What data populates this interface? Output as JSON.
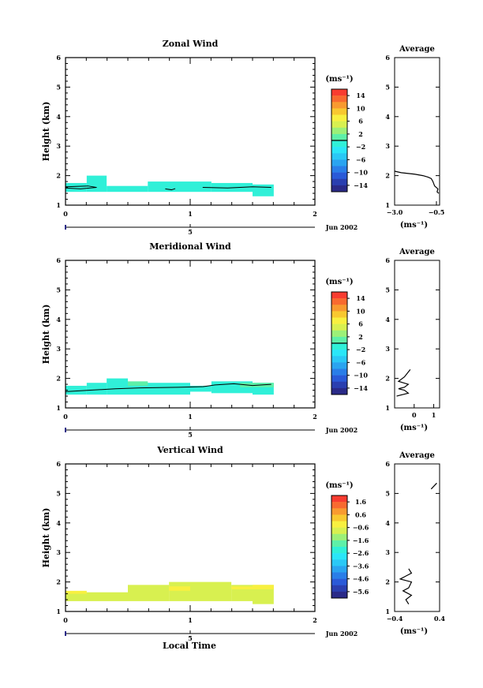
{
  "figure": {
    "xlabel": "Local Time",
    "colorbar_unit": "(ms⁻¹)",
    "avg_unit": "(ms⁻¹)",
    "avg_title": "Average",
    "date_label": "Jun 2002",
    "day_label": "5"
  },
  "chart_data": [
    {
      "type": "heatmap",
      "title": "Zonal Wind",
      "ylabel": "Height (km)",
      "xlim": [
        0,
        2
      ],
      "ylim": [
        1,
        6
      ],
      "xticks": [
        "0",
        "1",
        "2"
      ],
      "yticks": [
        "1",
        "2",
        "3",
        "4",
        "5",
        "6"
      ],
      "colorbar": {
        "ticks": [
          "14",
          "10",
          "6",
          "2",
          "−2",
          "−6",
          "−10",
          "−14"
        ],
        "range": [
          -16,
          16
        ],
        "zero_line": 0
      },
      "cells": [
        {
          "x0": 0.0,
          "x1": 0.17,
          "y0": 1.45,
          "y1": 1.75,
          "value": -1.5
        },
        {
          "x0": 0.17,
          "x1": 0.33,
          "y0": 1.45,
          "y1": 2.0,
          "value": -1.5
        },
        {
          "x0": 0.33,
          "x1": 0.66,
          "y0": 1.45,
          "y1": 1.65,
          "value": -1.5
        },
        {
          "x0": 0.66,
          "x1": 1.17,
          "y0": 1.45,
          "y1": 1.8,
          "value": -1.5
        },
        {
          "x0": 1.17,
          "x1": 1.5,
          "y0": 1.45,
          "y1": 1.75,
          "value": -1.5
        },
        {
          "x0": 1.5,
          "x1": 1.67,
          "y0": 1.3,
          "y1": 1.7,
          "value": -1.5
        }
      ],
      "contours": [
        [
          [
            0.0,
            1.58
          ],
          [
            0.12,
            1.55
          ],
          [
            0.25,
            1.6
          ],
          [
            0.18,
            1.65
          ],
          [
            0.0,
            1.62
          ]
        ],
        [
          [
            0.8,
            1.55
          ],
          [
            0.85,
            1.52
          ],
          [
            0.88,
            1.56
          ]
        ],
        [
          [
            1.1,
            1.6
          ],
          [
            1.3,
            1.58
          ],
          [
            1.5,
            1.62
          ],
          [
            1.65,
            1.6
          ]
        ]
      ],
      "average": {
        "xlim": [
          -3.0,
          -0.3
        ],
        "xticks": [
          "−3.0",
          "−0.5"
        ],
        "yticks": [
          "1",
          "2",
          "3",
          "4",
          "5",
          "6"
        ],
        "x": [
          -3.0,
          -2.6,
          -1.8,
          -1.3,
          -1.0,
          -0.8,
          -0.7,
          -0.6,
          -0.5,
          -0.4,
          -0.45,
          -0.35
        ],
        "y": [
          2.15,
          2.1,
          2.05,
          2.0,
          1.95,
          1.9,
          1.8,
          1.65,
          1.6,
          1.55,
          1.45,
          1.4
        ]
      }
    },
    {
      "type": "heatmap",
      "title": "Meridional Wind",
      "ylabel": "Height (km)",
      "xlim": [
        0,
        2
      ],
      "ylim": [
        1,
        6
      ],
      "xticks": [
        "0",
        "1",
        "2"
      ],
      "yticks": [
        "1",
        "2",
        "3",
        "4",
        "5",
        "6"
      ],
      "colorbar": {
        "ticks": [
          "14",
          "10",
          "6",
          "2",
          "−2",
          "−6",
          "−10",
          "−14"
        ],
        "range": [
          -16,
          16
        ],
        "zero_line": 0
      },
      "cells": [
        {
          "x0": 0.0,
          "x1": 0.17,
          "y0": 1.45,
          "y1": 1.75,
          "value": -1.5
        },
        {
          "x0": 0.17,
          "x1": 0.33,
          "y0": 1.45,
          "y1": 1.85,
          "value": -1.5
        },
        {
          "x0": 0.33,
          "x1": 0.5,
          "y0": 1.45,
          "y1": 2.0,
          "value": -1.0
        },
        {
          "x0": 0.5,
          "x1": 1.0,
          "y0": 1.45,
          "y1": 1.85,
          "value": -1.5
        },
        {
          "x0": 1.0,
          "x1": 1.17,
          "y0": 1.55,
          "y1": 1.75,
          "value": -1.5
        },
        {
          "x0": 1.17,
          "x1": 1.5,
          "y0": 1.5,
          "y1": 1.9,
          "value": -1.5
        },
        {
          "x0": 1.5,
          "x1": 1.67,
          "y0": 1.45,
          "y1": 1.85,
          "value": -1.5
        },
        {
          "x0": 0.5,
          "x1": 0.66,
          "y0": 1.75,
          "y1": 1.9,
          "value": 0.5
        },
        {
          "x0": 1.4,
          "x1": 1.67,
          "y0": 1.7,
          "y1": 1.85,
          "value": 0.5
        }
      ],
      "contours": [
        [
          [
            0.0,
            1.55
          ],
          [
            0.2,
            1.6
          ],
          [
            0.4,
            1.65
          ],
          [
            0.6,
            1.68
          ],
          [
            0.9,
            1.7
          ],
          [
            1.1,
            1.72
          ]
        ],
        [
          [
            1.1,
            1.72
          ],
          [
            1.2,
            1.78
          ],
          [
            1.35,
            1.82
          ],
          [
            1.5,
            1.76
          ],
          [
            1.65,
            1.8
          ]
        ]
      ],
      "average": {
        "xlim": [
          -1.0,
          1.3
        ],
        "xticks": [
          "0",
          "1"
        ],
        "yticks": [
          "1",
          "2",
          "3",
          "4",
          "5",
          "6"
        ],
        "x": [
          -0.2,
          -0.5,
          -0.8,
          -0.3,
          -0.5,
          -0.8,
          -0.5,
          -0.3,
          -0.6,
          -0.9
        ],
        "y": [
          2.3,
          2.05,
          1.9,
          1.8,
          1.7,
          1.65,
          1.6,
          1.5,
          1.45,
          1.4
        ]
      }
    },
    {
      "type": "heatmap",
      "title": "Vertical Wind",
      "ylabel": "Height (km)",
      "xlim": [
        0,
        2
      ],
      "ylim": [
        1,
        6
      ],
      "xticks": [
        "0",
        "1",
        "2"
      ],
      "yticks": [
        "1",
        "2",
        "3",
        "4",
        "5",
        "6"
      ],
      "colorbar": {
        "ticks": [
          "1.6",
          "0.6",
          "−0.6",
          "−1.6",
          "−2.6",
          "−3.6",
          "−4.6",
          "−5.6"
        ],
        "range": [
          -6.2,
          2.2
        ],
        "zero_line": null
      },
      "cells": [
        {
          "x0": 0.0,
          "x1": 0.5,
          "y0": 1.35,
          "y1": 1.65,
          "value": -0.9
        },
        {
          "x0": 0.5,
          "x1": 0.83,
          "y0": 1.35,
          "y1": 1.9,
          "value": -0.9
        },
        {
          "x0": 0.83,
          "x1": 1.33,
          "y0": 1.35,
          "y1": 2.0,
          "value": -0.9
        },
        {
          "x0": 1.33,
          "x1": 1.5,
          "y0": 1.35,
          "y1": 1.9,
          "value": -0.9
        },
        {
          "x0": 1.5,
          "x1": 1.67,
          "y0": 1.25,
          "y1": 1.9,
          "value": -0.9
        },
        {
          "x0": 0.0,
          "x1": 0.17,
          "y0": 1.6,
          "y1": 1.7,
          "value": -0.3
        },
        {
          "x0": 0.83,
          "x1": 1.0,
          "y0": 1.7,
          "y1": 1.85,
          "value": -0.3
        },
        {
          "x0": 1.33,
          "x1": 1.5,
          "y0": 1.75,
          "y1": 1.85,
          "value": -0.3
        },
        {
          "x0": 1.5,
          "x1": 1.67,
          "y0": 1.75,
          "y1": 1.9,
          "value": -0.3
        }
      ],
      "contours": [],
      "average": {
        "xlim": [
          -0.4,
          0.4
        ],
        "xticks": [
          "−0.4",
          "0.4"
        ],
        "yticks": [
          "1",
          "2",
          "3",
          "4",
          "5",
          "6"
        ],
        "x": [
          -0.15,
          -0.1,
          -0.2,
          -0.3,
          -0.1,
          -0.15,
          -0.25,
          -0.1,
          -0.2,
          -0.15
        ],
        "y": [
          2.45,
          2.3,
          2.2,
          2.1,
          2.0,
          1.8,
          1.7,
          1.55,
          1.4,
          1.25
        ],
        "x2": [
          0.25,
          0.35
        ],
        "y2": [
          5.15,
          5.35
        ]
      }
    }
  ]
}
